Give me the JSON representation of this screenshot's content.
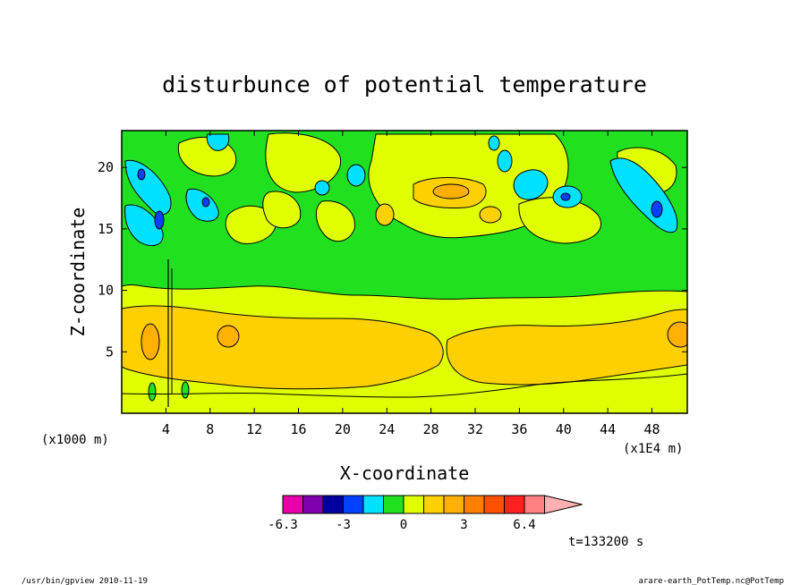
{
  "chart_data": {
    "type": "heatmap",
    "title": "disturbunce of potential temperature",
    "xlabel": "X-coordinate",
    "ylabel": "Z-coordinate",
    "x_scale_note": "(x1000 m)",
    "x_unit_note": "(x1E4 m)",
    "xlim": [
      0,
      51.2
    ],
    "ylim": [
      0,
      23
    ],
    "x_ticks": [
      "4",
      "8",
      "12",
      "16",
      "20",
      "24",
      "28",
      "32",
      "36",
      "40",
      "44",
      "48"
    ],
    "y_ticks": [
      "5",
      "10",
      "15",
      "20"
    ],
    "x_tick_values": [
      4,
      8,
      12,
      16,
      20,
      24,
      28,
      32,
      36,
      40,
      44,
      48
    ],
    "y_tick_values": [
      5,
      10,
      15,
      20
    ],
    "colorbar": {
      "levels": [
        -6.3,
        -5.25,
        -4.2,
        -3,
        -2,
        -1,
        0,
        1,
        2,
        3,
        4,
        5,
        6.4
      ],
      "colors": [
        "#e800a8",
        "#8000b0",
        "#0000a0",
        "#0040ff",
        "#00e0ff",
        "#20e020",
        "#e0ff00",
        "#ffd000",
        "#ffb000",
        "#ff8000",
        "#ff5000",
        "#ff2020",
        "#ff8080",
        "#ffb0b0"
      ],
      "labels": [
        "-6.3",
        "-3",
        "0",
        "3",
        "6.4"
      ],
      "label_values": [
        -6.3,
        -3,
        0,
        3,
        6.4
      ]
    },
    "time_label": "t=133200 s",
    "grid": false
  },
  "footer": {
    "left": "/usr/bin/gpview  2010-11-19",
    "right": "arare-earth_PotTemp.nc@PotTemp"
  }
}
